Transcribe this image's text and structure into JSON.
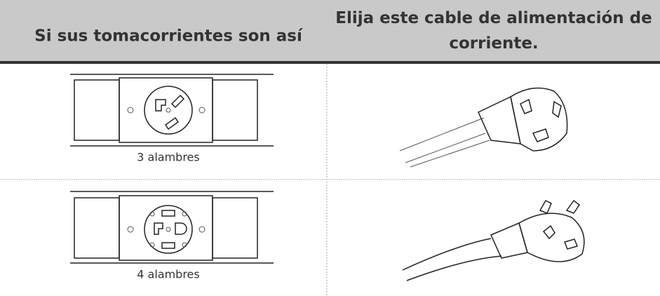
{
  "table": {
    "headers": [
      "Si sus tomacorrientes son así",
      "Elija este cable de alimentación de corriente."
    ],
    "rows": [
      [
        "3 alambres"
      ],
      [
        "4 alambres"
      ]
    ]
  }
}
